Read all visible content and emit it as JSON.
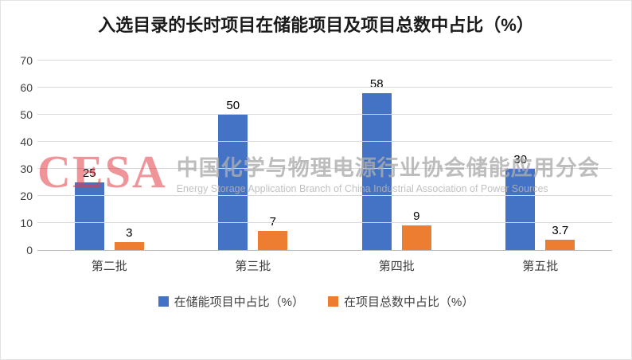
{
  "title": "入选目录的长时项目在储能项目及项目总数中占比（%）",
  "watermark": {
    "logo_text": "CESA",
    "name_cn": "中国化学与物理电源行业协会储能应用分会",
    "name_en": "Energy Storage Application Branch of China Industrial Association of Power Sources"
  },
  "colors": {
    "series1": "#4472C4",
    "series2": "#ED7D31",
    "gridline": "#D9D9D9",
    "axis_text": "#404040",
    "watermark_red": "#E13C46"
  },
  "chart_data": {
    "type": "bar",
    "title": "入选目录的长时项目在储能项目及项目总数中占比（%）",
    "categories": [
      "第二批",
      "第三批",
      "第四批",
      "第五批"
    ],
    "series": [
      {
        "name": "在储能项目中占比（%）",
        "color": "#4472C4",
        "values": [
          25,
          50,
          58,
          30
        ]
      },
      {
        "name": "在项目总数中占比（%）",
        "color": "#ED7D31",
        "values": [
          3,
          7,
          9,
          3.7
        ]
      }
    ],
    "xlabel": "",
    "ylabel": "",
    "ylim": [
      0,
      70
    ],
    "yticks": [
      0,
      10,
      20,
      30,
      40,
      50,
      60,
      70
    ],
    "grid": "horizontal",
    "legend_position": "bottom",
    "data_labels": true
  }
}
